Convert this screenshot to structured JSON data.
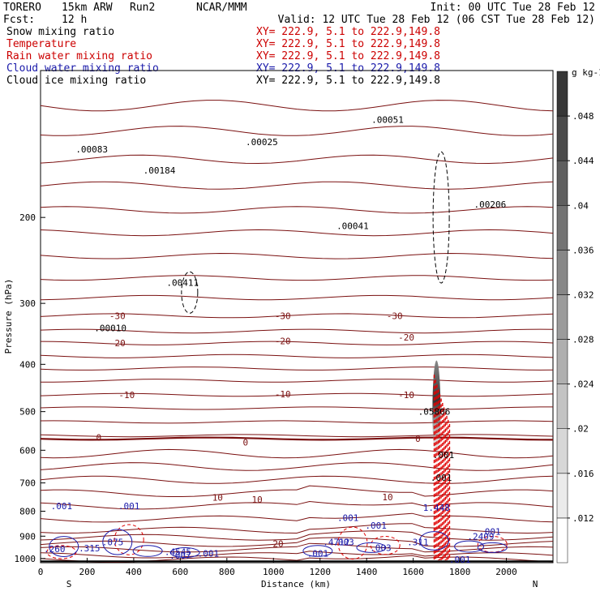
{
  "header": {
    "model": "TORERO",
    "config": "15km ARW",
    "run": "Run2",
    "org": "NCAR/MMM",
    "init": "Init: 00 UTC Tue 28 Feb 12",
    "fcst_label": "Fcst:",
    "fcst_value": "12 h",
    "valid": "Valid: 12 UTC Tue 28 Feb 12 (06 CST Tue 28 Feb 12)"
  },
  "fields": [
    {
      "name": "Snow mixing ratio",
      "xy": "XY= 222.9, 5.1 to 222.9,149.8",
      "color": "#000000"
    },
    {
      "name": "Temperature",
      "xy": "XY= 222.9, 5.1 to 222.9,149.8",
      "color": "#cc0000"
    },
    {
      "name": "Rain water mixing ratio",
      "xy": "XY= 222.9, 5.1 to 222.9,149.8",
      "color": "#cc0000"
    },
    {
      "name": "Cloud water mixing ratio",
      "xy": "XY= 222.9, 5.1 to 222.9,149.8",
      "color": "#1a1aaa"
    },
    {
      "name": "Cloud ice mixing ratio",
      "xy": "XY= 222.9, 5.1 to 222.9,149.8",
      "color": "#000000"
    }
  ],
  "chart_data": {
    "type": "contour",
    "xlabel": "Distance (km)",
    "ylabel": "Pressure (hPa)",
    "xlim": [
      0,
      2200
    ],
    "ylim": [
      1020,
      100
    ],
    "x_ticks": [
      0,
      200,
      400,
      600,
      800,
      1000,
      1200,
      1400,
      1600,
      1800,
      2000
    ],
    "y_ticks": [
      200,
      300,
      400,
      500,
      600,
      700,
      800,
      900,
      1000
    ],
    "x_end_labels": {
      "left": "S",
      "right": "N"
    },
    "colorbar": {
      "unit": "g kg-1",
      "ticks": [
        ".012",
        ".016",
        ".02",
        ".024",
        ".028",
        ".032",
        ".036",
        ".04",
        ".044",
        ".048"
      ],
      "tick_values": [
        0.012,
        0.016,
        0.02,
        0.024,
        0.028,
        0.032,
        0.036,
        0.04,
        0.044,
        0.048
      ]
    },
    "temperature_labels": [
      {
        "text": "-30",
        "x": 330,
        "p": 318
      },
      {
        "text": "-30",
        "x": 1040,
        "p": 318
      },
      {
        "text": "-30",
        "x": 1520,
        "p": 318
      },
      {
        "text": "-20",
        "x": 330,
        "p": 362
      },
      {
        "text": "-20",
        "x": 1040,
        "p": 358
      },
      {
        "text": "-20",
        "x": 1570,
        "p": 352
      },
      {
        "text": "-10",
        "x": 370,
        "p": 462
      },
      {
        "text": "-10",
        "x": 1040,
        "p": 460
      },
      {
        "text": "-10",
        "x": 1570,
        "p": 462
      },
      {
        "text": "0",
        "x": 250,
        "p": 565
      },
      {
        "text": "0",
        "x": 880,
        "p": 578
      },
      {
        "text": "0",
        "x": 1620,
        "p": 568
      },
      {
        "text": "10",
        "x": 760,
        "p": 750
      },
      {
        "text": "10",
        "x": 930,
        "p": 757
      },
      {
        "text": "10",
        "x": 1490,
        "p": 748
      },
      {
        "text": "20",
        "x": 1020,
        "p": 933
      }
    ],
    "high_labels": [
      {
        "text": ".00083",
        "x": 220,
        "p": 145
      },
      {
        "text": ".00184",
        "x": 510,
        "p": 160
      },
      {
        "text": ".00025",
        "x": 950,
        "p": 140
      },
      {
        "text": ".00041",
        "x": 1340,
        "p": 208
      },
      {
        "text": ".00051",
        "x": 1490,
        "p": 126
      },
      {
        "text": ".00206",
        "x": 1930,
        "p": 188
      },
      {
        "text": ".00411",
        "x": 610,
        "p": 272
      },
      {
        "text": ".00010",
        "x": 300,
        "p": 337
      },
      {
        "text": ".05806",
        "x": 1690,
        "p": 500
      },
      {
        "text": "1.448",
        "x": 1700,
        "p": 786
      },
      {
        "text": ".001",
        "x": 1730,
        "p": 613
      },
      {
        "text": ".001",
        "x": 1720,
        "p": 683
      },
      {
        "text": ".001",
        "x": 90,
        "p": 780
      },
      {
        "text": ".001",
        "x": 380,
        "p": 780
      },
      {
        "text": ".001",
        "x": 1320,
        "p": 825
      },
      {
        "text": ".001",
        "x": 1440,
        "p": 855
      },
      {
        "text": ".001",
        "x": 1930,
        "p": 880
      },
      {
        "text": ".075",
        "x": 310,
        "p": 925
      },
      {
        "text": ".315",
        "x": 210,
        "p": 953
      },
      {
        "text": ".260",
        "x": 60,
        "p": 955
      },
      {
        "text": ".4545",
        "x": 590,
        "p": 968
      },
      {
        "text": ".001",
        "x": 720,
        "p": 977
      },
      {
        "text": ".007",
        "x": 600,
        "p": 985
      },
      {
        "text": ".001",
        "x": 1190,
        "p": 977
      },
      {
        "text": ".4712",
        "x": 1270,
        "p": 925
      },
      {
        "text": ".003",
        "x": 1300,
        "p": 925
      },
      {
        "text": ".003",
        "x": 1460,
        "p": 950
      },
      {
        "text": ".311",
        "x": 1620,
        "p": 925
      },
      {
        "text": ".2409",
        "x": 1890,
        "p": 900
      },
      {
        "text": ".001",
        "x": 1800,
        "p": 1005
      }
    ]
  }
}
